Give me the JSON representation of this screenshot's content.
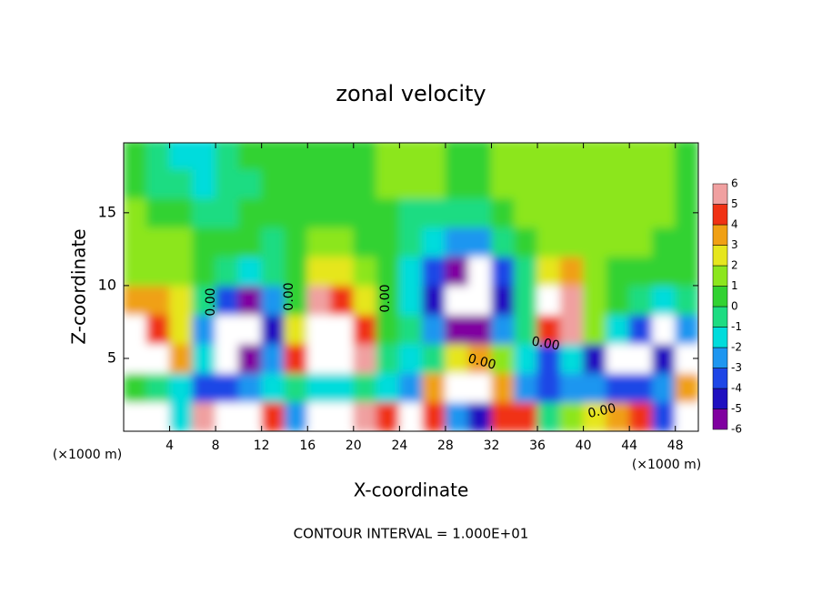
{
  "chart_data": {
    "type": "heatmap",
    "title": "zonal velocity",
    "xlabel": "X-coordinate",
    "ylabel": "Z-coordinate",
    "xunit": "(×1000 m)",
    "yunit": "(×1000 m)",
    "footer": "CONTOUR INTERVAL = 1.000E+01",
    "contour_labels": [
      "0.00",
      "0.00",
      "0.00",
      "0.00",
      "0.00",
      "0.00"
    ],
    "xlim": [
      0,
      50
    ],
    "ylim": [
      0,
      19.8
    ],
    "xticks": [
      4,
      8,
      12,
      16,
      20,
      24,
      28,
      32,
      36,
      40,
      44,
      48
    ],
    "yticks": [
      5,
      10,
      15
    ],
    "x": [
      1,
      3,
      5,
      7,
      9,
      11,
      13,
      15,
      17,
      19,
      21,
      23,
      25,
      27,
      29,
      31,
      33,
      35,
      37,
      39,
      41,
      43,
      45,
      47,
      49
    ],
    "y": [
      1,
      3,
      5,
      7,
      9,
      11,
      13,
      15,
      17,
      19
    ],
    "z": [
      [
        7,
        7,
        -2,
        5,
        7,
        7,
        4,
        -3,
        7,
        7,
        5,
        4,
        7,
        4,
        -3,
        -5,
        4,
        4,
        -1,
        1,
        2,
        3,
        4,
        -4,
        7
      ],
      [
        0,
        -1,
        -2,
        -4,
        -4,
        -3,
        -2,
        -1,
        -2,
        -2,
        -1,
        -2,
        -3,
        3,
        7,
        7,
        3,
        -3,
        -4,
        -3,
        -3,
        -4,
        -4,
        -3,
        3
      ],
      [
        7,
        7,
        3,
        -2,
        -7,
        -6,
        -3,
        4,
        7,
        7,
        5,
        -1,
        -2,
        -1,
        2,
        3,
        1,
        -2,
        -4,
        -2,
        -5,
        -7,
        -7,
        -5,
        7
      ],
      [
        7,
        4,
        2,
        -3,
        -7,
        -7,
        -5,
        2,
        7,
        7,
        4,
        0.5,
        -1,
        -3,
        -6,
        -6,
        -3,
        -1,
        4,
        6,
        1,
        -2,
        -4,
        -7,
        -3
      ],
      [
        3,
        3,
        2,
        -1,
        -4,
        -6,
        -3,
        0.5,
        5,
        4,
        2,
        0.5,
        -2,
        -5,
        -7,
        -7,
        -5,
        -1,
        7,
        5,
        1,
        0,
        -1,
        -2,
        -0.5
      ],
      [
        1.5,
        1.5,
        1,
        0.5,
        -1,
        -2,
        -1,
        0.5,
        2,
        2,
        1,
        0.5,
        -1.5,
        -4,
        -6,
        -7,
        -4,
        -0.5,
        2,
        3,
        1,
        0.5,
        0.5,
        0.5,
        0.5
      ],
      [
        1,
        1,
        1,
        0.5,
        0.5,
        0,
        -0.5,
        0.5,
        1,
        1,
        0.5,
        0.5,
        -1,
        -2,
        -3,
        -2.5,
        -1,
        0.5,
        1.5,
        1.5,
        1,
        1,
        1,
        0.5,
        0.5
      ],
      [
        1,
        0.5,
        0,
        -0.5,
        -0.5,
        0,
        0.5,
        0.5,
        0.5,
        0.5,
        0.5,
        0.5,
        -0.5,
        -0.5,
        -0.5,
        -0.5,
        0.5,
        1.5,
        1.5,
        1.5,
        1,
        1,
        1.5,
        1,
        0.5
      ],
      [
        0.5,
        -0.5,
        -1,
        -1.5,
        -1,
        -0.5,
        0.5,
        0.5,
        0.5,
        0.5,
        0.5,
        1,
        1,
        1,
        0.5,
        0.5,
        1.5,
        1.5,
        1.5,
        1.5,
        1.5,
        1,
        1,
        1.5,
        0.5
      ],
      [
        0.5,
        -1,
        -2,
        -2,
        -1,
        0,
        0.5,
        0.5,
        0.5,
        0.5,
        0.5,
        1,
        1,
        1,
        0.5,
        0.5,
        1,
        1,
        1.5,
        1.5,
        1.5,
        1,
        1,
        1.5,
        0.5
      ]
    ],
    "levels": [
      -6,
      -5,
      -4,
      -3,
      -2,
      -1,
      0,
      1,
      2,
      3,
      4,
      5,
      6
    ],
    "colors": [
      "#8000a0",
      "#2010c0",
      "#1e46e6",
      "#1e96f0",
      "#00dcdc",
      "#1edc82",
      "#32d232",
      "#8ce61e",
      "#e6e61e",
      "#f0a014",
      "#f03214",
      "#f0a0a0"
    ],
    "out_of_range_color": "#ffffff"
  }
}
